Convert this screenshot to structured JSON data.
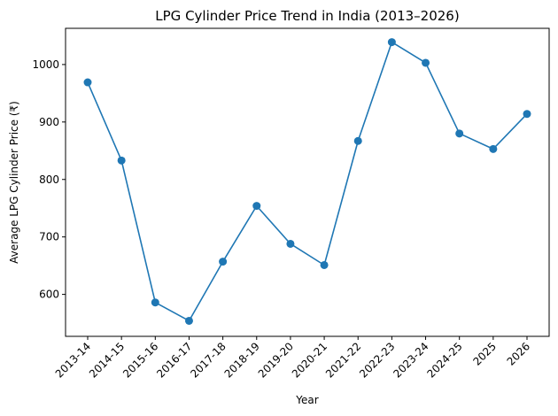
{
  "chart_data": {
    "type": "line",
    "title": "LPG Cylinder Price Trend in India (2013–2026)",
    "xlabel": "Year",
    "ylabel": "Average LPG Cylinder Price (₹)",
    "categories": [
      "2013-14",
      "2014-15",
      "2015-16",
      "2016-17",
      "2017-18",
      "2018-19",
      "2019-20",
      "2020-21",
      "2021-22",
      "2022-23",
      "2023-24",
      "2024-25",
      "2025",
      "2026"
    ],
    "series": [
      {
        "values": [
          969,
          833,
          586,
          554,
          657,
          754,
          688,
          651,
          867,
          1039,
          1003,
          880,
          853,
          914
        ],
        "color": "#1f77b4",
        "marker": "circle"
      }
    ],
    "yticks": [
      600,
      700,
      800,
      900,
      1000
    ],
    "ylim": [
      527,
      1063
    ],
    "grid": false,
    "legend": "none"
  }
}
